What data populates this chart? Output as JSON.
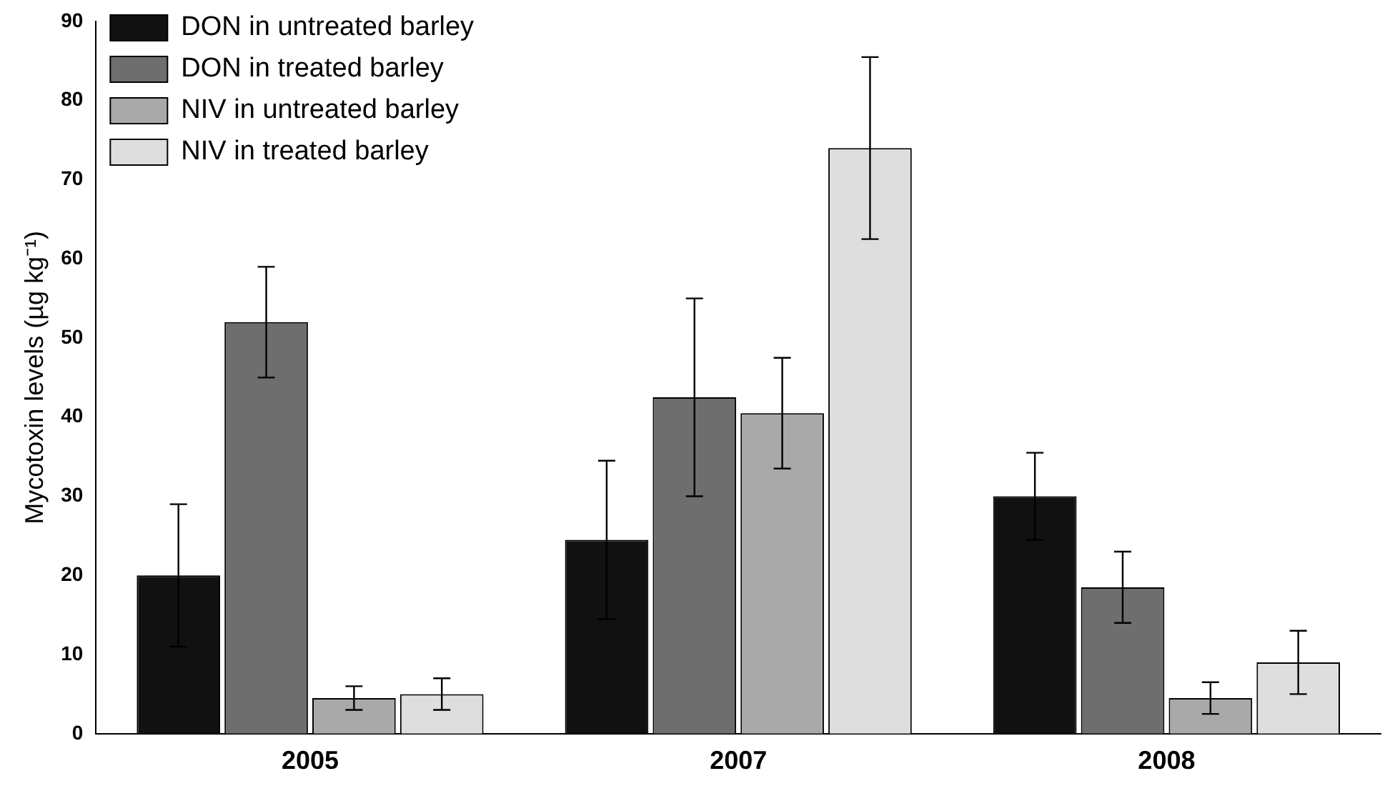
{
  "chart_data": {
    "type": "bar",
    "ylabel": "Mycotoxin levels (µg kg⁻¹)",
    "categories": [
      "2005",
      "2007",
      "2008"
    ],
    "series": [
      {
        "name": "DON in untreated barley",
        "color": "#111111",
        "values": [
          20,
          24.5,
          30
        ],
        "errors": [
          9,
          10,
          5.5
        ]
      },
      {
        "name": "DON in treated barley",
        "color": "#6e6e6e",
        "values": [
          52,
          42.5,
          18.5
        ],
        "errors": [
          7,
          12.5,
          4.5
        ]
      },
      {
        "name": "NIV in untreated barley",
        "color": "#a9a9a9",
        "values": [
          4.5,
          40.5,
          4.5
        ],
        "errors": [
          1.5,
          7,
          2
        ]
      },
      {
        "name": "NIV in treated barley",
        "color": "#dedede",
        "values": [
          5,
          74,
          9
        ],
        "errors": [
          2,
          11.5,
          4
        ]
      }
    ],
    "ylim": [
      0,
      90
    ],
    "yticks": [
      0,
      10,
      20,
      30,
      40,
      50,
      60,
      70,
      80,
      90
    ],
    "grid": false,
    "legend": "top left"
  }
}
